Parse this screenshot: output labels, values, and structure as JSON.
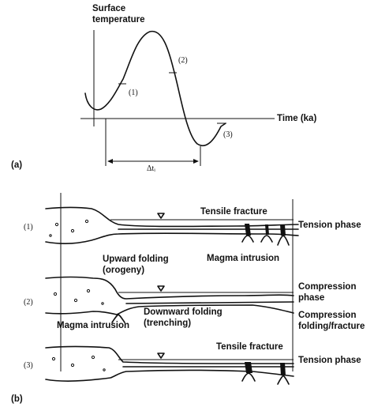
{
  "panel_a": {
    "label": "(a)",
    "y_axis_label_line1": "Surface",
    "y_axis_label_line2": "temperature",
    "x_axis_label": "Time (ka)",
    "markers": [
      "(1)",
      "(2)",
      "(3)"
    ],
    "interval_label": "Δtᵢ"
  },
  "panel_b": {
    "label": "(b)",
    "sections": [
      {
        "marker": "(1)",
        "annotations": [
          "Tensile fracture",
          "Magma intrusion"
        ],
        "phase": "Tension phase"
      },
      {
        "marker": "(2)",
        "annotations": [
          "Upward folding",
          "(orogeny)",
          "Downward folding",
          "(trenching)",
          "Magma intrusion"
        ],
        "phase_lines": [
          "Compression",
          "phase",
          "Compression",
          "folding/fracture"
        ]
      },
      {
        "marker": "(3)",
        "annotations": [
          "Tensile fracture"
        ],
        "phase": "Tension phase"
      }
    ]
  }
}
